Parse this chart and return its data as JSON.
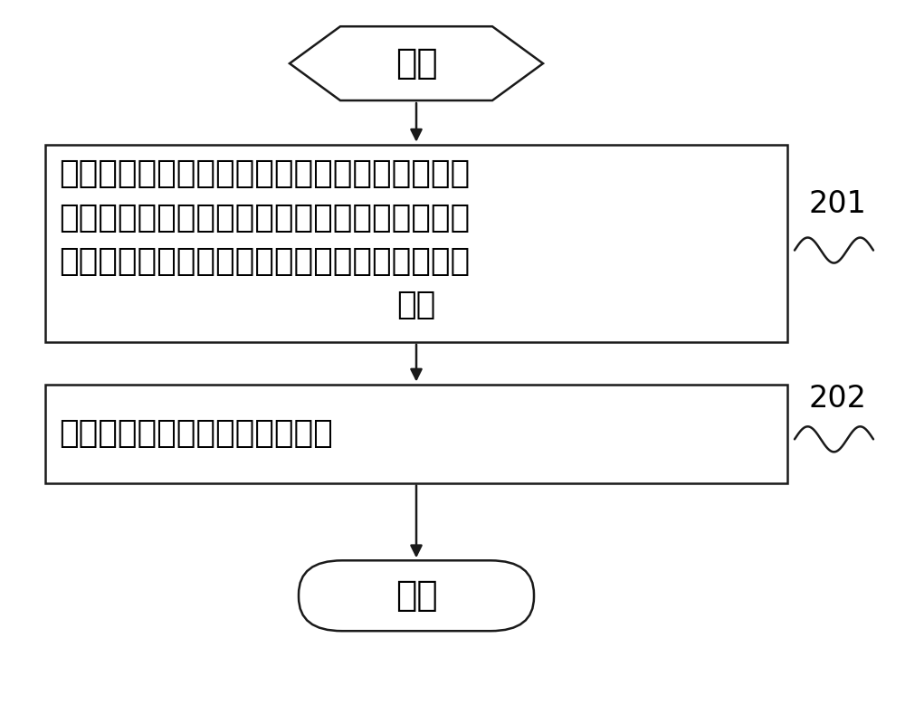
{
  "bg_color": "#ffffff",
  "shape_fill": "#ffffff",
  "shape_edge": "#1a1a1a",
  "arrow_color": "#1a1a1a",
  "line_width": 1.8,
  "font_color": "#000000",
  "start_text": "开始",
  "box1_line1": "配置测量频点信息，所述测量频点信息包括测量",
  "box1_line2": "频点和指示信息，所述指示信息用于指示每个所",
  "box1_line3": "述测量频点为非公网络测量频点或公共网络测量",
  "box1_line4": "频点",
  "box2_text": "将所述测量频点信息发送给终端",
  "end_text": "结束",
  "label1": "201",
  "label2": "202",
  "title_fontsize": 28,
  "body_fontsize": 26,
  "label_fontsize": 24
}
